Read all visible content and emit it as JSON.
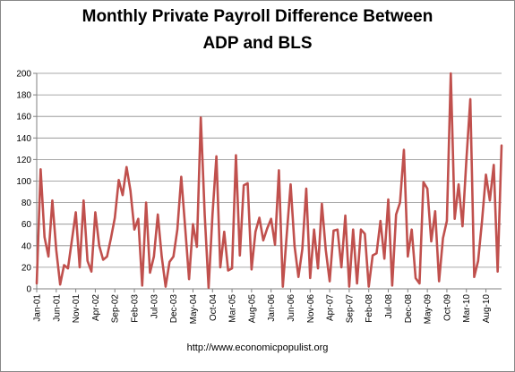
{
  "chart_data": {
    "type": "line",
    "title_line1": "Monthly  Private Payroll Difference Between",
    "title_line2": "ADP and BLS",
    "credit": "http://www.economicpopulist.org",
    "xlabel": "",
    "ylabel": "",
    "ylim": [
      0,
      200
    ],
    "yticks": [
      0,
      20,
      40,
      60,
      80,
      100,
      120,
      140,
      160,
      180,
      200
    ],
    "grid": "horizontal",
    "legend": "none",
    "line_color": "#c0504d",
    "start": "Jan-01",
    "xtick_labels": [
      {
        "label": "Jan-01",
        "index": 0
      },
      {
        "label": "Jun-01",
        "index": 5
      },
      {
        "label": "Nov-01",
        "index": 10
      },
      {
        "label": "Apr-02",
        "index": 15
      },
      {
        "label": "Sep-02",
        "index": 20
      },
      {
        "label": "Feb-03",
        "index": 25
      },
      {
        "label": "Jul-03",
        "index": 30
      },
      {
        "label": "Dec-03",
        "index": 35
      },
      {
        "label": "May-04",
        "index": 40
      },
      {
        "label": "Oct-04",
        "index": 45
      },
      {
        "label": "Mar-05",
        "index": 50
      },
      {
        "label": "Aug-05",
        "index": 55
      },
      {
        "label": "Jan-06",
        "index": 60
      },
      {
        "label": "Jun-06",
        "index": 65
      },
      {
        "label": "Nov-06",
        "index": 70
      },
      {
        "label": "Apr-07",
        "index": 75
      },
      {
        "label": "Sep-07",
        "index": 80
      },
      {
        "label": "Feb-08",
        "index": 85
      },
      {
        "label": "Jul-08",
        "index": 90
      },
      {
        "label": "Dec-08",
        "index": 95
      },
      {
        "label": "May-09",
        "index": 100
      },
      {
        "label": "Oct-09",
        "index": 105
      },
      {
        "label": "Mar-10",
        "index": 110
      },
      {
        "label": "Aug-10",
        "index": 115
      }
    ],
    "values": [
      5,
      111,
      48,
      30,
      82,
      36,
      4,
      22,
      19,
      45,
      71,
      20,
      82,
      26,
      16,
      71,
      40,
      27,
      30,
      47,
      66,
      101,
      87,
      113,
      91,
      55,
      65,
      3,
      80,
      15,
      30,
      69,
      30,
      2,
      25,
      30,
      55,
      104,
      57,
      9,
      60,
      39,
      159,
      69,
      1,
      69,
      123,
      20,
      53,
      17,
      19,
      124,
      31,
      96,
      98,
      18,
      53,
      66,
      45,
      56,
      65,
      41,
      110,
      2,
      50,
      97,
      40,
      11,
      37,
      93,
      10,
      55,
      19,
      79,
      36,
      7,
      54,
      55,
      20,
      68,
      2,
      55,
      5,
      55,
      51,
      2,
      31,
      33,
      63,
      28,
      83,
      3,
      69,
      80,
      129,
      30,
      55,
      10,
      5,
      99,
      93,
      44,
      72,
      7,
      47,
      63,
      200,
      65,
      97,
      58,
      120,
      176,
      11,
      26,
      63,
      106,
      82,
      115,
      16,
      133
    ]
  }
}
